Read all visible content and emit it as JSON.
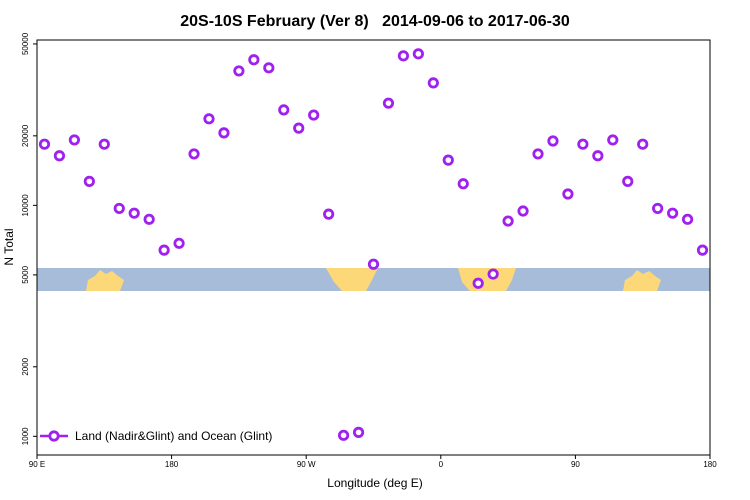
{
  "chart_data": {
    "type": "scatter",
    "title": "20S-10S February (Ver 8)   2014-09-06 to 2017-06-30",
    "x_label": "Longitude (deg E)",
    "y_label": "N Total",
    "ylog": true,
    "xlim": [
      90,
      540
    ],
    "ylim": [
      830,
      52000
    ],
    "xticks": [
      {
        "value": 90,
        "label": "90 E"
      },
      180,
      {
        "value": 270,
        "label": "90 W"
      },
      {
        "value": 360,
        "label": "0"
      },
      {
        "value": 450,
        "label": "90"
      },
      {
        "value": 540,
        "label": "180"
      }
    ],
    "yticks": [
      1000,
      2000,
      5000,
      10000,
      20000,
      50000
    ],
    "legend": "bottom-left",
    "x": [
      95,
      105,
      115,
      125,
      135,
      145,
      155,
      165,
      175,
      185,
      195,
      205,
      215,
      225,
      235,
      245,
      255,
      265,
      275,
      285,
      295,
      305,
      315,
      325,
      335,
      345,
      355,
      365,
      375,
      385,
      395,
      405,
      415,
      425,
      435,
      445,
      455,
      465,
      475,
      485,
      495,
      505,
      515,
      525,
      535
    ],
    "series": [
      {
        "name": "Land (Nadir&Glint) and Ocean (Glint)",
        "color": "#a020f0",
        "values": [
          18400,
          16400,
          19200,
          12700,
          18400,
          9700,
          9250,
          8700,
          6400,
          6850,
          16700,
          23700,
          20600,
          38200,
          42700,
          39400,
          25900,
          21600,
          24600,
          9160,
          1010,
          1040,
          5560,
          27700,
          44400,
          45300,
          33900,
          15700,
          12400,
          4600,
          5040,
          8550,
          9450,
          16700,
          19000,
          11200,
          18400,
          16400,
          19200,
          12700,
          18400,
          9700,
          9250,
          8700,
          6400
        ]
      }
    ]
  }
}
